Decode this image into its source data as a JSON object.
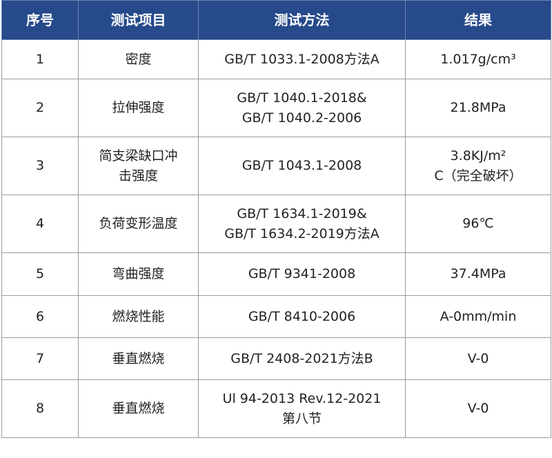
{
  "headers": [
    "序号",
    "测试项目",
    "测试方法",
    "结果"
  ],
  "rows": [
    {
      "no": "1",
      "item": [
        "密度"
      ],
      "method": [
        "GB/T 1033.1-2008方法A"
      ],
      "result": [
        "1.017g/cm³"
      ]
    },
    {
      "no": "2",
      "item": [
        "拉伸强度"
      ],
      "method": [
        "GB/T 1040.1-2018&",
        "GB/T 1040.2-2006"
      ],
      "result": [
        "21.8MPa"
      ]
    },
    {
      "no": "3",
      "item": [
        "简支梁缺口冲",
        "击强度"
      ],
      "method": [
        "GB/T 1043.1-2008"
      ],
      "result": [
        "3.8KJ/m²",
        "C（完全破坏）"
      ]
    },
    {
      "no": "4",
      "item": [
        "负荷变形温度"
      ],
      "method": [
        "GB/T 1634.1-2019&",
        "GB/T 1634.2-2019方法A"
      ],
      "result": [
        "96℃"
      ]
    },
    {
      "no": "5",
      "item": [
        "弯曲强度"
      ],
      "method": [
        "GB/T 9341-2008"
      ],
      "result": [
        "37.4MPa"
      ]
    },
    {
      "no": "6",
      "item": [
        "燃烧性能"
      ],
      "method": [
        "GB/T 8410-2006"
      ],
      "result": [
        "A-0mm/min"
      ]
    },
    {
      "no": "7",
      "item": [
        "垂直燃烧"
      ],
      "method": [
        "GB/T 2408-2021方法B"
      ],
      "result": [
        "V-0"
      ]
    },
    {
      "no": "8",
      "item": [
        "垂直燃烧"
      ],
      "method": [
        "Ul 94-2013 Rev.12-2021",
        "第八节"
      ],
      "result": [
        "V-0"
      ]
    }
  ],
  "colors": {
    "header_bg": "#264a8a",
    "header_text": "#ffffff",
    "border": "#9a9a9a"
  }
}
